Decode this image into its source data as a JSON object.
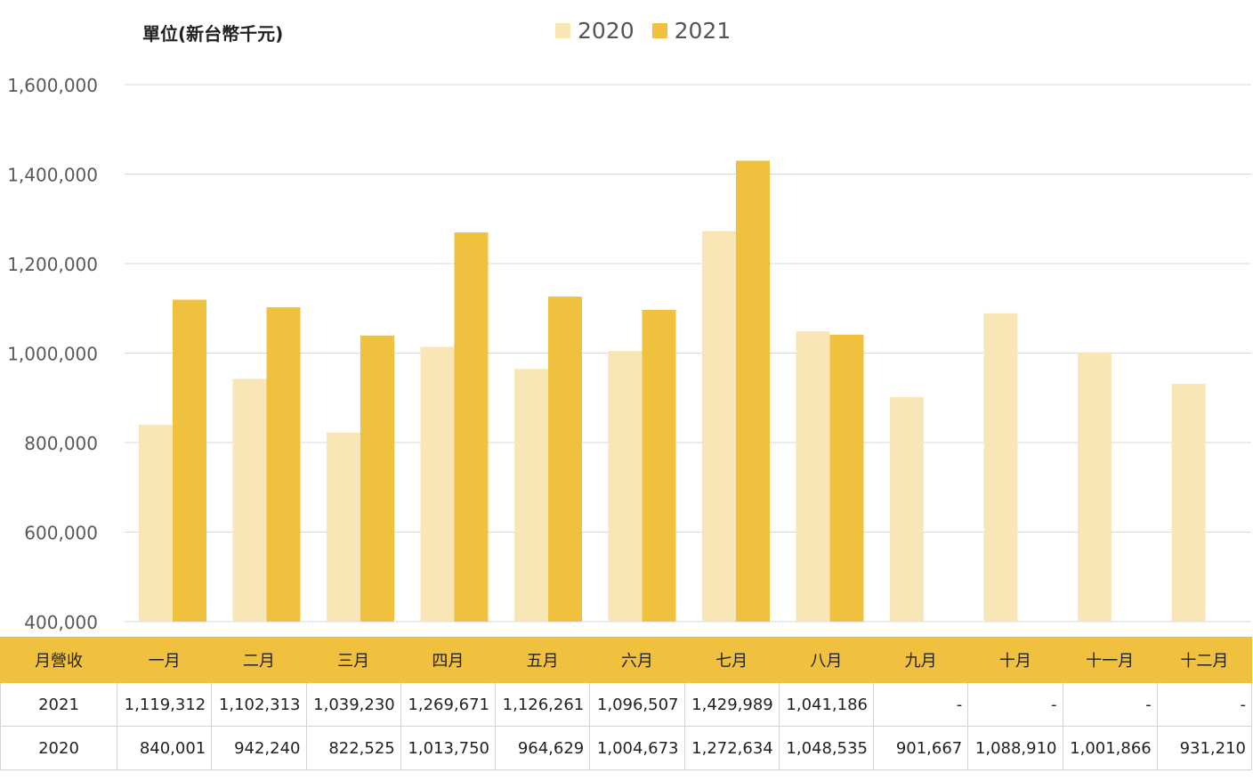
{
  "chart_data": {
    "type": "bar",
    "unit_label": "單位(新台幣千元)",
    "categories": [
      "一月",
      "二月",
      "三月",
      "四月",
      "五月",
      "六月",
      "七月",
      "八月",
      "九月",
      "十月",
      "十一月",
      "十二月"
    ],
    "series": [
      {
        "name": "2020",
        "color": "#f9e6b6",
        "values": [
          840001,
          942240,
          822525,
          1013750,
          964629,
          1004673,
          1272634,
          1048535,
          901667,
          1088910,
          1001866,
          931210
        ]
      },
      {
        "name": "2021",
        "color": "#efc13f",
        "values": [
          1119312,
          1102313,
          1039230,
          1269671,
          1126261,
          1096507,
          1429989,
          1041186,
          null,
          null,
          null,
          null
        ]
      }
    ],
    "ylim": [
      400000,
      1600000
    ],
    "yticks": [
      400000,
      600000,
      800000,
      1000000,
      1200000,
      1400000,
      1600000
    ],
    "ytick_labels": [
      "400,000",
      "600,000",
      "800,000",
      "1,000,000",
      "1,200,000",
      "1,400,000",
      "1,600,000"
    ],
    "grid": true,
    "legend_position": "top-center"
  },
  "table": {
    "corner_label": "月營收",
    "rows": [
      {
        "label": "2021",
        "cells": [
          "1,119,312",
          "1,102,313",
          "1,039,230",
          "1,269,671",
          "1,126,261",
          "1,096,507",
          "1,429,989",
          "1,041,186",
          "-",
          "-",
          "-",
          "-"
        ]
      },
      {
        "label": "2020",
        "cells": [
          "840,001",
          "942,240",
          "822,525",
          "1,013,750",
          "964,629",
          "1,004,673",
          "1,272,634",
          "1,048,535",
          "901,667",
          "1,088,910",
          "1,001,866",
          "931,210"
        ]
      }
    ]
  }
}
